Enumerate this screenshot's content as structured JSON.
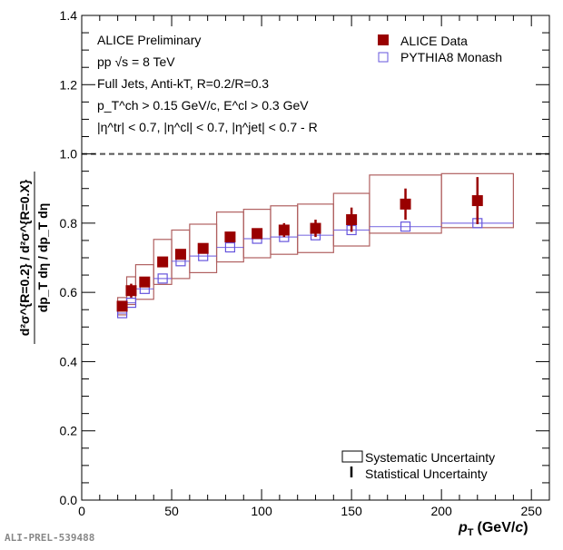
{
  "chart_data": {
    "type": "scatter",
    "xlabel": "p_T (GeV/c)",
    "xlabel_main": "p",
    "xlabel_sub": "T",
    "xlabel_unit": "(GeV/",
    "xlabel_unit_c": "c",
    "xlabel_close": ")",
    "ylabel_num": "d²σ^{R=0.2} / d²σ^{R=0.X}",
    "ylabel_den": "dp_T dη / dp_T dη",
    "xlim": [
      0,
      260
    ],
    "ylim": [
      0,
      1.4
    ],
    "xticks": [
      0,
      50,
      100,
      150,
      200,
      250
    ],
    "yticks": [
      0.0,
      0.2,
      0.4,
      0.6,
      0.8,
      1.0,
      1.2,
      1.4
    ],
    "ytick_labels": [
      "0.0",
      "0.2",
      "0.4",
      "0.6",
      "0.8",
      "1.0",
      "1.2",
      "1.4"
    ],
    "reference_line": 1.0,
    "annotations": [
      "ALICE Preliminary",
      "pp √s = 8 TeV",
      "Full Jets, Anti-kT, R=0.2/R=0.3",
      "p_T^ch > 0.15 GeV/c, E^cl > 0.3 GeV",
      "|η^tr| < 0.7, |η^cl| < 0.7, |η^jet| < 0.7 - R"
    ],
    "legend": [
      "ALICE Data",
      "PYTHIA8 Monash",
      "Systematic Uncertainty",
      "Statistical Uncertainty"
    ],
    "legend_placement": "top-right / bottom-right",
    "series": [
      {
        "name": "ALICE Data",
        "color": "#990000",
        "x": [
          22.5,
          27.5,
          35,
          45,
          55,
          67.5,
          82.5,
          97.5,
          112.5,
          130,
          150,
          180,
          220
        ],
        "x_halfwidth": [
          2.5,
          2.5,
          5,
          5,
          5,
          7.5,
          7.5,
          7.5,
          7.5,
          10,
          10,
          20,
          20
        ],
        "y": [
          0.56,
          0.605,
          0.63,
          0.688,
          0.71,
          0.727,
          0.76,
          0.77,
          0.78,
          0.785,
          0.81,
          0.855,
          0.865
        ],
        "stat_err": [
          0.01,
          0.02,
          0.01,
          0.01,
          0.01,
          0.01,
          0.01,
          0.01,
          0.02,
          0.025,
          0.035,
          0.045,
          0.068
        ],
        "sys_err": [
          0.025,
          0.04,
          0.05,
          0.065,
          0.07,
          0.07,
          0.072,
          0.07,
          0.07,
          0.07,
          0.076,
          0.084,
          0.078
        ]
      },
      {
        "name": "PYTHIA8 Monash",
        "color": "#6655dd",
        "x": [
          22.5,
          27.5,
          35,
          45,
          55,
          67.5,
          82.5,
          97.5,
          112.5,
          130,
          150,
          180,
          220
        ],
        "x_halfwidth": [
          2.5,
          2.5,
          5,
          5,
          5,
          7.5,
          7.5,
          7.5,
          7.5,
          10,
          10,
          20,
          20
        ],
        "y": [
          0.54,
          0.57,
          0.61,
          0.64,
          0.69,
          0.705,
          0.73,
          0.755,
          0.76,
          0.765,
          0.78,
          0.79,
          0.8
        ]
      }
    ]
  },
  "footer": "ALI-PREL-539488"
}
